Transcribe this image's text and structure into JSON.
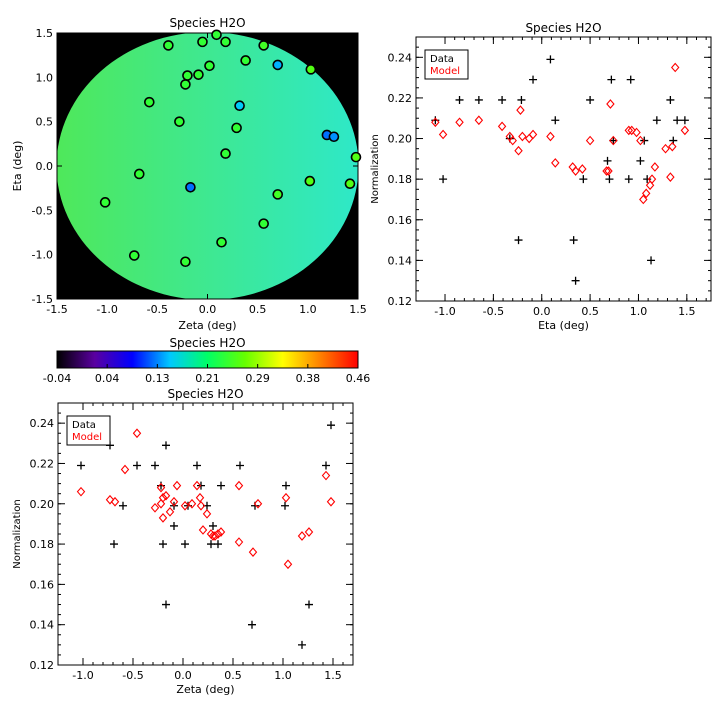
{
  "chart_data": [
    {
      "id": "map",
      "type": "scatter",
      "title": "Species H2O",
      "xlabel": "Zeta (deg)",
      "ylabel": "Eta (deg)",
      "xlim": [
        -1.5,
        1.5
      ],
      "ylim": [
        -1.5,
        1.5
      ],
      "xticks": [
        "-1.5",
        "-1.0",
        "-0.5",
        "0.0",
        "0.5",
        "1.0",
        "1.5"
      ],
      "yticks": [
        "-1.5",
        "-1.0",
        "-0.5",
        "0.0",
        "0.5",
        "1.0",
        "1.5"
      ],
      "background": "#000000",
      "field_colors": [
        "#4fe85a",
        "#2ee8c8"
      ],
      "points": [
        {
          "x": -0.39,
          "y": 1.36,
          "c": 0.24
        },
        {
          "x": -0.05,
          "y": 1.4,
          "c": 0.24
        },
        {
          "x": 0.09,
          "y": 1.48,
          "c": 0.24
        },
        {
          "x": 0.18,
          "y": 1.4,
          "c": 0.24
        },
        {
          "x": 0.56,
          "y": 1.36,
          "c": 0.25
        },
        {
          "x": 0.7,
          "y": 1.14,
          "c": 0.14
        },
        {
          "x": 1.03,
          "y": 1.09,
          "c": 0.26
        },
        {
          "x": -0.2,
          "y": 1.02,
          "c": 0.24
        },
        {
          "x": -0.09,
          "y": 1.03,
          "c": 0.24
        },
        {
          "x": 0.02,
          "y": 1.13,
          "c": 0.24
        },
        {
          "x": 0.38,
          "y": 1.19,
          "c": 0.24
        },
        {
          "x": -0.22,
          "y": 0.92,
          "c": 0.24
        },
        {
          "x": -0.58,
          "y": 0.72,
          "c": 0.24
        },
        {
          "x": 0.32,
          "y": 0.68,
          "c": 0.15
        },
        {
          "x": -0.28,
          "y": 0.5,
          "c": 0.24
        },
        {
          "x": 0.29,
          "y": 0.43,
          "c": 0.24
        },
        {
          "x": 1.19,
          "y": 0.35,
          "c": 0.12
        },
        {
          "x": 1.26,
          "y": 0.33,
          "c": 0.13
        },
        {
          "x": 0.18,
          "y": 0.14,
          "c": 0.24
        },
        {
          "x": 1.48,
          "y": 0.1,
          "c": 0.26
        },
        {
          "x": -0.68,
          "y": -0.09,
          "c": 0.24
        },
        {
          "x": 1.02,
          "y": -0.17,
          "c": 0.26
        },
        {
          "x": 1.42,
          "y": -0.2,
          "c": 0.26
        },
        {
          "x": -0.17,
          "y": -0.24,
          "c": 0.12
        },
        {
          "x": 0.7,
          "y": -0.32,
          "c": 0.25
        },
        {
          "x": -1.02,
          "y": -0.41,
          "c": 0.24
        },
        {
          "x": 0.56,
          "y": -0.65,
          "c": 0.24
        },
        {
          "x": 0.14,
          "y": -0.86,
          "c": 0.24
        },
        {
          "x": -0.73,
          "y": -1.01,
          "c": 0.24
        },
        {
          "x": -0.22,
          "y": -1.08,
          "c": 0.24
        }
      ]
    },
    {
      "id": "colorbar",
      "type": "colorbar",
      "title": "Species H2O",
      "min": -0.04,
      "max": 0.46,
      "ticks": [
        "-0.04",
        "0.04",
        "0.13",
        "0.21",
        "0.29",
        "0.38",
        "0.46"
      ],
      "stops": [
        "#000000",
        "#5a00a0",
        "#0000ff",
        "#00c8ff",
        "#00ff66",
        "#66ff00",
        "#ffff00",
        "#ff8000",
        "#ff0000"
      ]
    },
    {
      "id": "eta-plot",
      "type": "scatter",
      "title": "Species H2O",
      "xlabel": "Eta (deg)",
      "ylabel": "Normalization",
      "xlim": [
        -1.3,
        1.75
      ],
      "ylim": [
        0.12,
        0.25
      ],
      "xticks": [
        {
          "v": -1.0,
          "l": "-1.0"
        },
        {
          "v": -0.5,
          "l": "-0.5"
        },
        {
          "v": 0.0,
          "l": "0.0"
        },
        {
          "v": 0.5,
          "l": "0.5"
        },
        {
          "v": 1.0,
          "l": "1.0"
        },
        {
          "v": 1.5,
          "l": "1.5"
        }
      ],
      "yticks": [
        {
          "v": 0.12,
          "l": "0.12"
        },
        {
          "v": 0.14,
          "l": "0.14"
        },
        {
          "v": 0.16,
          "l": "0.16"
        },
        {
          "v": 0.18,
          "l": "0.18"
        },
        {
          "v": 0.2,
          "l": "0.20"
        },
        {
          "v": 0.22,
          "l": "0.22"
        },
        {
          "v": 0.24,
          "l": "0.24"
        }
      ],
      "legend": {
        "entries": [
          "Data",
          "Model"
        ],
        "colors": [
          "#000000",
          "#ff0000"
        ],
        "position": "top-left"
      },
      "series": [
        {
          "name": "Data",
          "marker": "plus",
          "color": "#000000",
          "x": [
            -1.1,
            -1.02,
            -0.85,
            -0.65,
            -0.41,
            -0.33,
            -0.24,
            -0.21,
            -0.09,
            0.09,
            0.14,
            0.33,
            0.35,
            0.43,
            0.5,
            0.68,
            0.7,
            0.72,
            0.74,
            0.9,
            0.92,
            1.02,
            1.06,
            1.09,
            1.13,
            1.19,
            1.33,
            1.36,
            1.4,
            1.48
          ],
          "y": [
            0.209,
            0.18,
            0.219,
            0.219,
            0.219,
            0.2,
            0.15,
            0.219,
            0.229,
            0.239,
            0.209,
            0.15,
            0.13,
            0.18,
            0.219,
            0.189,
            0.18,
            0.229,
            0.199,
            0.18,
            0.229,
            0.189,
            0.199,
            0.18,
            0.14,
            0.209,
            0.219,
            0.199,
            0.209,
            0.209
          ]
        },
        {
          "name": "Model",
          "marker": "diamond",
          "color": "#ff0000",
          "x": [
            -1.1,
            -1.02,
            -0.85,
            -0.65,
            -0.41,
            -0.33,
            -0.3,
            -0.24,
            -0.22,
            -0.2,
            -0.13,
            -0.09,
            0.09,
            0.14,
            0.32,
            0.35,
            0.42,
            0.5,
            0.67,
            0.69,
            0.71,
            0.74,
            0.9,
            0.93,
            0.98,
            1.02,
            1.05,
            1.08,
            1.12,
            1.14,
            1.17,
            1.28,
            1.33,
            1.35,
            1.38,
            1.48
          ],
          "y": [
            0.208,
            0.202,
            0.208,
            0.209,
            0.206,
            0.201,
            0.199,
            0.194,
            0.214,
            0.201,
            0.2,
            0.202,
            0.201,
            0.188,
            0.186,
            0.184,
            0.185,
            0.199,
            0.184,
            0.184,
            0.217,
            0.199,
            0.204,
            0.204,
            0.203,
            0.199,
            0.17,
            0.173,
            0.177,
            0.18,
            0.186,
            0.195,
            0.181,
            0.196,
            0.235,
            0.204
          ]
        }
      ]
    },
    {
      "id": "zeta-plot",
      "type": "scatter",
      "title": "Species H2O",
      "xlabel": "Zeta (deg)",
      "ylabel": "Normalization",
      "xlim": [
        -1.25,
        1.7
      ],
      "ylim": [
        0.12,
        0.25
      ],
      "xticks": [
        {
          "v": -1.0,
          "l": "-1.0"
        },
        {
          "v": -0.5,
          "l": "-0.5"
        },
        {
          "v": 0.0,
          "l": "0.0"
        },
        {
          "v": 0.5,
          "l": "0.5"
        },
        {
          "v": 1.0,
          "l": "1.0"
        },
        {
          "v": 1.5,
          "l": "1.5"
        }
      ],
      "yticks": [
        {
          "v": 0.12,
          "l": "0.12"
        },
        {
          "v": 0.14,
          "l": "0.14"
        },
        {
          "v": 0.16,
          "l": "0.16"
        },
        {
          "v": 0.18,
          "l": "0.18"
        },
        {
          "v": 0.2,
          "l": "0.20"
        },
        {
          "v": 0.22,
          "l": "0.22"
        },
        {
          "v": 0.24,
          "l": "0.24"
        }
      ],
      "legend": {
        "entries": [
          "Data",
          "Model"
        ],
        "colors": [
          "#000000",
          "#ff0000"
        ],
        "position": "top-left"
      },
      "series": [
        {
          "name": "Data",
          "marker": "plus",
          "color": "#000000",
          "x": [
            -1.02,
            -0.73,
            -0.69,
            -0.6,
            -0.46,
            -0.28,
            -0.22,
            -0.2,
            -0.17,
            -0.17,
            -0.09,
            -0.09,
            0.02,
            0.05,
            0.14,
            0.18,
            0.24,
            0.28,
            0.3,
            0.35,
            0.38,
            0.57,
            0.69,
            0.72,
            1.03,
            1.02,
            1.19,
            1.26,
            1.43,
            1.48
          ],
          "y": [
            0.219,
            0.229,
            0.18,
            0.199,
            0.219,
            0.219,
            0.209,
            0.18,
            0.229,
            0.15,
            0.199,
            0.189,
            0.18,
            0.199,
            0.219,
            0.209,
            0.199,
            0.18,
            0.189,
            0.18,
            0.209,
            0.219,
            0.14,
            0.199,
            0.209,
            0.199,
            0.13,
            0.15,
            0.219,
            0.239
          ]
        },
        {
          "name": "Model",
          "marker": "diamond",
          "color": "#ff0000",
          "x": [
            -1.02,
            -0.73,
            -0.68,
            -0.58,
            -0.46,
            -0.28,
            -0.22,
            -0.2,
            -0.2,
            -0.17,
            -0.13,
            -0.09,
            -0.06,
            0.02,
            0.09,
            0.14,
            0.17,
            0.2,
            0.24,
            0.28,
            0.3,
            0.32,
            0.35,
            0.38,
            0.56,
            0.56,
            0.7,
            0.75,
            1.03,
            1.05,
            1.19,
            1.26,
            1.43,
            1.48,
            0.18,
            -0.22
          ],
          "y": [
            0.206,
            0.202,
            0.201,
            0.217,
            0.235,
            0.198,
            0.208,
            0.203,
            0.193,
            0.204,
            0.196,
            0.201,
            0.209,
            0.199,
            0.2,
            0.209,
            0.203,
            0.187,
            0.195,
            0.185,
            0.184,
            0.184,
            0.185,
            0.186,
            0.209,
            0.181,
            0.176,
            0.2,
            0.203,
            0.17,
            0.184,
            0.186,
            0.214,
            0.201,
            0.199,
            0.2
          ]
        }
      ]
    }
  ]
}
